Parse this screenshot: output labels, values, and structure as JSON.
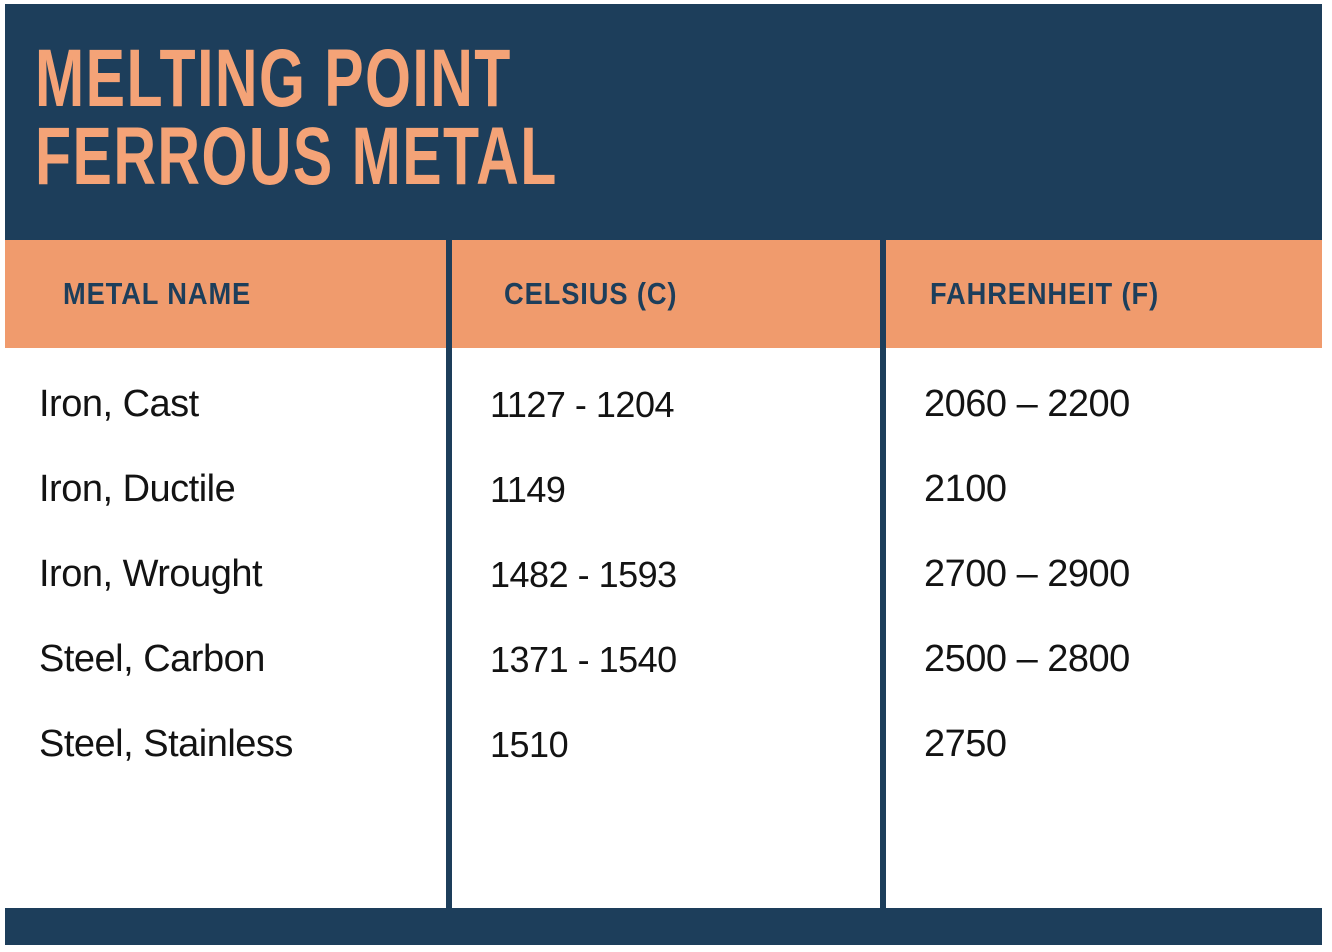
{
  "title": {
    "line1": "MELTING POINT",
    "line2": "FERROUS METAL"
  },
  "chart_data": {
    "type": "table",
    "title": "MELTING POINT FERROUS METAL",
    "columns": [
      "METAL NAME",
      "CELSIUS (C)",
      "FAHRENHEIT (F)"
    ],
    "rows": [
      [
        "Iron, Cast",
        "1127 - 1204",
        "2060 – 2200"
      ],
      [
        "Iron, Ductile",
        "1149",
        "2100"
      ],
      [
        "Iron, Wrought",
        "1482 - 1593",
        "2700 – 2900"
      ],
      [
        "Steel, Carbon",
        "1371 - 1540",
        "2500 – 2800"
      ],
      [
        "Steel, Stainless",
        "1510",
        "2750"
      ]
    ],
    "layout": {
      "header_fill": "#f09b6d",
      "header_text": "#1d3e5b",
      "body_fill": "#ffffff",
      "body_text": "#131313",
      "divider_color": "#1d3e5b",
      "banner_fill": "#1d3e5b",
      "banner_text": "#f4a377"
    }
  },
  "colors": {
    "navy": "#1d3e5b",
    "orange_band": "#f09b6d",
    "title_orange": "#f4a377",
    "body_text": "#131313",
    "page_background": "#ffffff"
  }
}
